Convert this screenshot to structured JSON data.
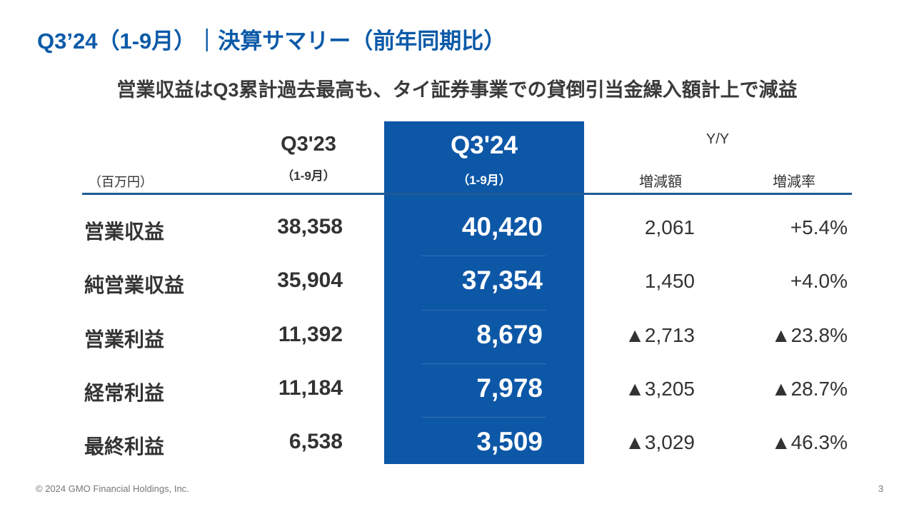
{
  "header": {
    "title": "Q3’24（1-9月）｜決算サマリー（前年同期比）",
    "subtitle": "営業収益はQ3累計過去最高も、タイ証券事業での貸倒引当金繰入額計上で減益"
  },
  "table": {
    "unit": "（百万円）",
    "columns": [
      {
        "label": "Q3'23",
        "period": "（1-9月）"
      },
      {
        "label": "Q3'24",
        "period": "（1-9月）"
      }
    ],
    "yoy": {
      "label": "Y/Y",
      "columns": [
        "増減額",
        "増減率"
      ]
    },
    "rows": [
      [
        "営業収益",
        "38,358",
        "40,420",
        "2,061",
        "+5.4%"
      ],
      [
        "純営業収益",
        "35,904",
        "37,354",
        "1,450",
        "+4.0%"
      ],
      [
        "営業利益",
        "11,392",
        "8,679",
        "▲2,713",
        "▲23.8%"
      ],
      [
        "経常利益",
        "11,184",
        "7,978",
        "▲3,205",
        "▲28.7%"
      ],
      [
        "最終利益",
        "6,538",
        "3,509",
        "▲3,029",
        "▲46.3%"
      ]
    ]
  },
  "footer": {
    "copyright": "© 2024 GMO Financial Holdings, Inc.",
    "page": "3"
  }
}
